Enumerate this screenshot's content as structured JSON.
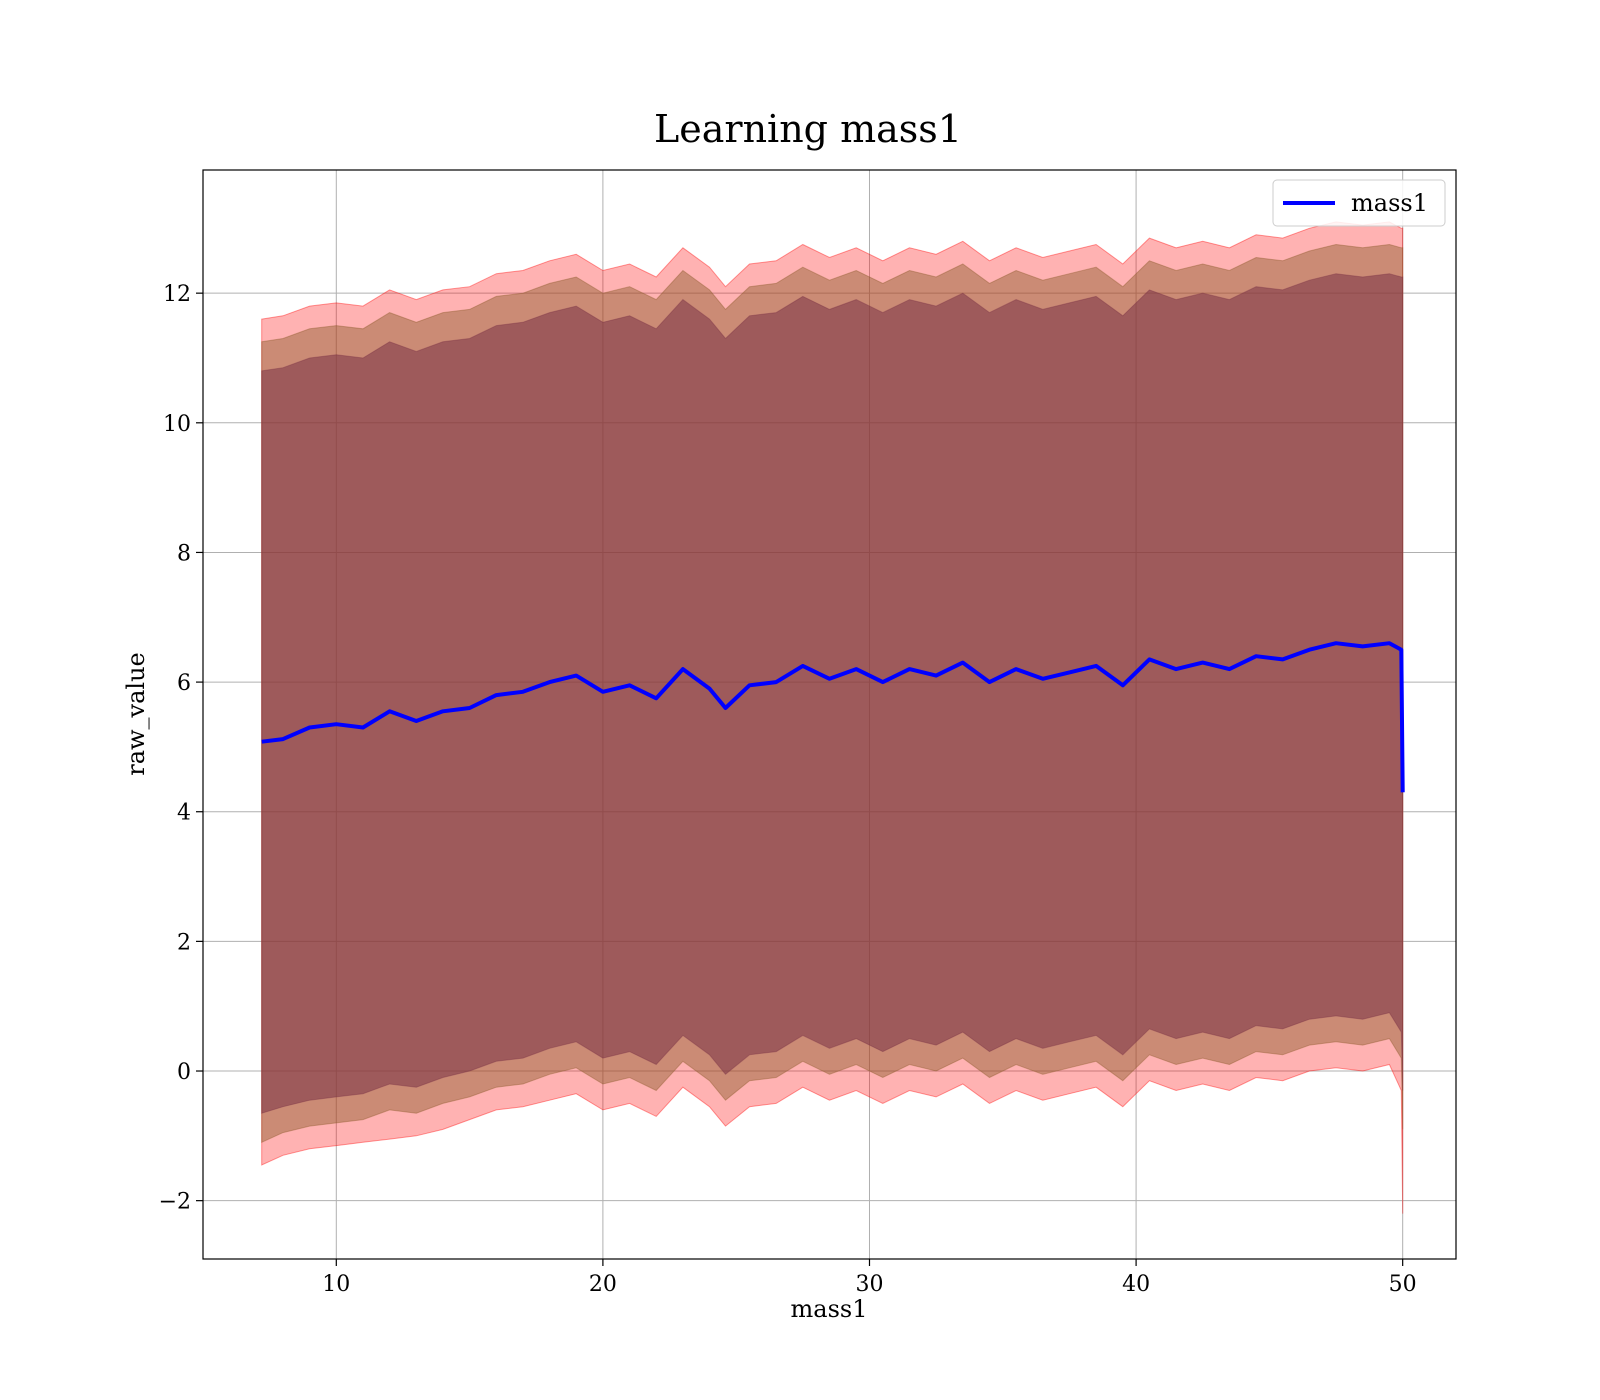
{
  "chart_data": {
    "type": "line",
    "title": "Learning mass1",
    "xlabel": "mass1",
    "ylabel": "raw_value",
    "xlim": [
      5,
      52
    ],
    "ylim": [
      -2.9,
      13.9
    ],
    "x_ticks": [
      10,
      20,
      30,
      40,
      50
    ],
    "y_ticks": [
      -2,
      0,
      2,
      4,
      6,
      8,
      10,
      12
    ],
    "y_tick_labels": [
      "−2",
      "0",
      "2",
      "4",
      "6",
      "8",
      "10",
      "12"
    ],
    "grid": true,
    "legend_position": "top-right",
    "x_range": [
      7.2,
      50.0
    ],
    "series": [
      {
        "name": "mass1",
        "color": "#0000ff",
        "x": [
          7.2,
          8.0,
          9.0,
          10.0,
          11.0,
          12.0,
          13.0,
          14.0,
          15.0,
          16.0,
          17.0,
          18.0,
          19.0,
          20.0,
          21.0,
          22.0,
          23.0,
          24.0,
          24.6,
          25.5,
          26.5,
          27.5,
          28.5,
          29.5,
          30.5,
          31.5,
          32.5,
          33.5,
          34.5,
          35.5,
          36.5,
          37.5,
          38.5,
          39.5,
          40.5,
          41.5,
          42.5,
          43.5,
          44.5,
          45.5,
          46.5,
          47.5,
          48.5,
          49.5,
          49.95,
          50.0
        ],
        "y": [
          5.08,
          5.12,
          5.3,
          5.35,
          5.3,
          5.55,
          5.4,
          5.55,
          5.6,
          5.8,
          5.85,
          6.0,
          6.1,
          5.85,
          5.95,
          5.75,
          6.2,
          5.9,
          5.6,
          5.95,
          6.0,
          6.25,
          6.05,
          6.2,
          6.0,
          6.2,
          6.1,
          6.3,
          6.0,
          6.2,
          6.05,
          6.15,
          6.25,
          5.95,
          6.35,
          6.2,
          6.3,
          6.2,
          6.4,
          6.35,
          6.5,
          6.6,
          6.55,
          6.6,
          6.5,
          4.3
        ]
      }
    ],
    "bands": [
      {
        "color": "#ff0000",
        "opacity": 0.3,
        "x": [
          7.2,
          8.0,
          9.0,
          10.0,
          11.0,
          12.0,
          13.0,
          14.0,
          15.0,
          16.0,
          17.0,
          18.0,
          19.0,
          20.0,
          21.0,
          22.0,
          23.0,
          24.0,
          24.6,
          25.5,
          26.5,
          27.5,
          28.5,
          29.5,
          30.5,
          31.5,
          32.5,
          33.5,
          34.5,
          35.5,
          36.5,
          37.5,
          38.5,
          39.5,
          40.5,
          41.5,
          42.5,
          43.5,
          44.5,
          45.5,
          46.5,
          47.5,
          48.5,
          49.5,
          49.95,
          50.0
        ],
        "lower": [
          -1.45,
          -1.3,
          -1.2,
          -1.15,
          -1.1,
          -1.05,
          -1.0,
          -0.9,
          -0.75,
          -0.6,
          -0.55,
          -0.45,
          -0.35,
          -0.6,
          -0.5,
          -0.7,
          -0.25,
          -0.55,
          -0.85,
          -0.55,
          -0.5,
          -0.25,
          -0.45,
          -0.3,
          -0.5,
          -0.3,
          -0.4,
          -0.2,
          -0.5,
          -0.3,
          -0.45,
          -0.35,
          -0.25,
          -0.55,
          -0.15,
          -0.3,
          -0.2,
          -0.3,
          -0.1,
          -0.15,
          0.0,
          0.05,
          0.0,
          0.1,
          -0.3,
          -2.2
        ],
        "upper": [
          11.6,
          11.65,
          11.8,
          11.85,
          11.8,
          12.05,
          11.9,
          12.05,
          12.1,
          12.3,
          12.35,
          12.5,
          12.6,
          12.35,
          12.45,
          12.25,
          12.7,
          12.4,
          12.1,
          12.45,
          12.5,
          12.75,
          12.55,
          12.7,
          12.5,
          12.7,
          12.6,
          12.8,
          12.5,
          12.7,
          12.55,
          12.65,
          12.75,
          12.45,
          12.85,
          12.7,
          12.8,
          12.7,
          12.9,
          12.85,
          13.0,
          13.1,
          13.05,
          13.1,
          13.0,
          13.0
        ]
      },
      {
        "color": "#8b5a2b",
        "opacity": 0.45,
        "x": [
          7.2,
          8.0,
          9.0,
          10.0,
          11.0,
          12.0,
          13.0,
          14.0,
          15.0,
          16.0,
          17.0,
          18.0,
          19.0,
          20.0,
          21.0,
          22.0,
          23.0,
          24.0,
          24.6,
          25.5,
          26.5,
          27.5,
          28.5,
          29.5,
          30.5,
          31.5,
          32.5,
          33.5,
          34.5,
          35.5,
          36.5,
          37.5,
          38.5,
          39.5,
          40.5,
          41.5,
          42.5,
          43.5,
          44.5,
          45.5,
          46.5,
          47.5,
          48.5,
          49.5,
          49.95,
          50.0
        ],
        "lower": [
          -1.1,
          -0.95,
          -0.85,
          -0.8,
          -0.75,
          -0.6,
          -0.65,
          -0.5,
          -0.4,
          -0.25,
          -0.2,
          -0.05,
          0.05,
          -0.2,
          -0.1,
          -0.3,
          0.15,
          -0.15,
          -0.45,
          -0.15,
          -0.1,
          0.15,
          -0.05,
          0.1,
          -0.1,
          0.1,
          0.0,
          0.2,
          -0.1,
          0.1,
          -0.05,
          0.05,
          0.15,
          -0.15,
          0.25,
          0.1,
          0.2,
          0.1,
          0.3,
          0.25,
          0.4,
          0.45,
          0.4,
          0.5,
          0.2,
          -0.9
        ],
        "upper": [
          11.25,
          11.3,
          11.45,
          11.5,
          11.45,
          11.7,
          11.55,
          11.7,
          11.75,
          11.95,
          12.0,
          12.15,
          12.25,
          12.0,
          12.1,
          11.9,
          12.35,
          12.05,
          11.75,
          12.1,
          12.15,
          12.4,
          12.2,
          12.35,
          12.15,
          12.35,
          12.25,
          12.45,
          12.15,
          12.35,
          12.2,
          12.3,
          12.4,
          12.1,
          12.5,
          12.35,
          12.45,
          12.35,
          12.55,
          12.5,
          12.65,
          12.75,
          12.7,
          12.75,
          12.7,
          12.7
        ]
      },
      {
        "color": "#7a3345",
        "opacity": 0.55,
        "x": [
          7.2,
          8.0,
          9.0,
          10.0,
          11.0,
          12.0,
          13.0,
          14.0,
          15.0,
          16.0,
          17.0,
          18.0,
          19.0,
          20.0,
          21.0,
          22.0,
          23.0,
          24.0,
          24.6,
          25.5,
          26.5,
          27.5,
          28.5,
          29.5,
          30.5,
          31.5,
          32.5,
          33.5,
          34.5,
          35.5,
          36.5,
          37.5,
          38.5,
          39.5,
          40.5,
          41.5,
          42.5,
          43.5,
          44.5,
          45.5,
          46.5,
          47.5,
          48.5,
          49.5,
          49.95,
          50.0
        ],
        "lower": [
          -0.65,
          -0.55,
          -0.45,
          -0.4,
          -0.35,
          -0.2,
          -0.25,
          -0.1,
          0.0,
          0.15,
          0.2,
          0.35,
          0.45,
          0.2,
          0.3,
          0.1,
          0.55,
          0.25,
          -0.05,
          0.25,
          0.3,
          0.55,
          0.35,
          0.5,
          0.3,
          0.5,
          0.4,
          0.6,
          0.3,
          0.5,
          0.35,
          0.45,
          0.55,
          0.25,
          0.65,
          0.5,
          0.6,
          0.5,
          0.7,
          0.65,
          0.8,
          0.85,
          0.8,
          0.9,
          0.6,
          -0.3
        ],
        "upper": [
          10.8,
          10.85,
          11.0,
          11.05,
          11.0,
          11.25,
          11.1,
          11.25,
          11.3,
          11.5,
          11.55,
          11.7,
          11.8,
          11.55,
          11.65,
          11.45,
          11.9,
          11.6,
          11.3,
          11.65,
          11.7,
          11.95,
          11.75,
          11.9,
          11.7,
          11.9,
          11.8,
          12.0,
          11.7,
          11.9,
          11.75,
          11.85,
          11.95,
          11.65,
          12.05,
          11.9,
          12.0,
          11.9,
          12.1,
          12.05,
          12.2,
          12.3,
          12.25,
          12.3,
          12.25,
          12.25
        ]
      }
    ]
  }
}
